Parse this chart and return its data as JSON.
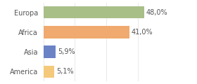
{
  "categories": [
    "America",
    "Asia",
    "Africa",
    "Europa"
  ],
  "values": [
    5.1,
    5.9,
    41.0,
    48.0
  ],
  "bar_colors": [
    "#f5c97a",
    "#6b82c4",
    "#f0a96e",
    "#a8bf87"
  ],
  "labels": [
    "5,1%",
    "5,9%",
    "41,0%",
    "48,0%"
  ],
  "xlim": [
    0,
    62
  ],
  "bar_height": 0.62,
  "background_color": "#ffffff",
  "text_color": "#555555",
  "label_fontsize": 7.0,
  "tick_fontsize": 7.0
}
